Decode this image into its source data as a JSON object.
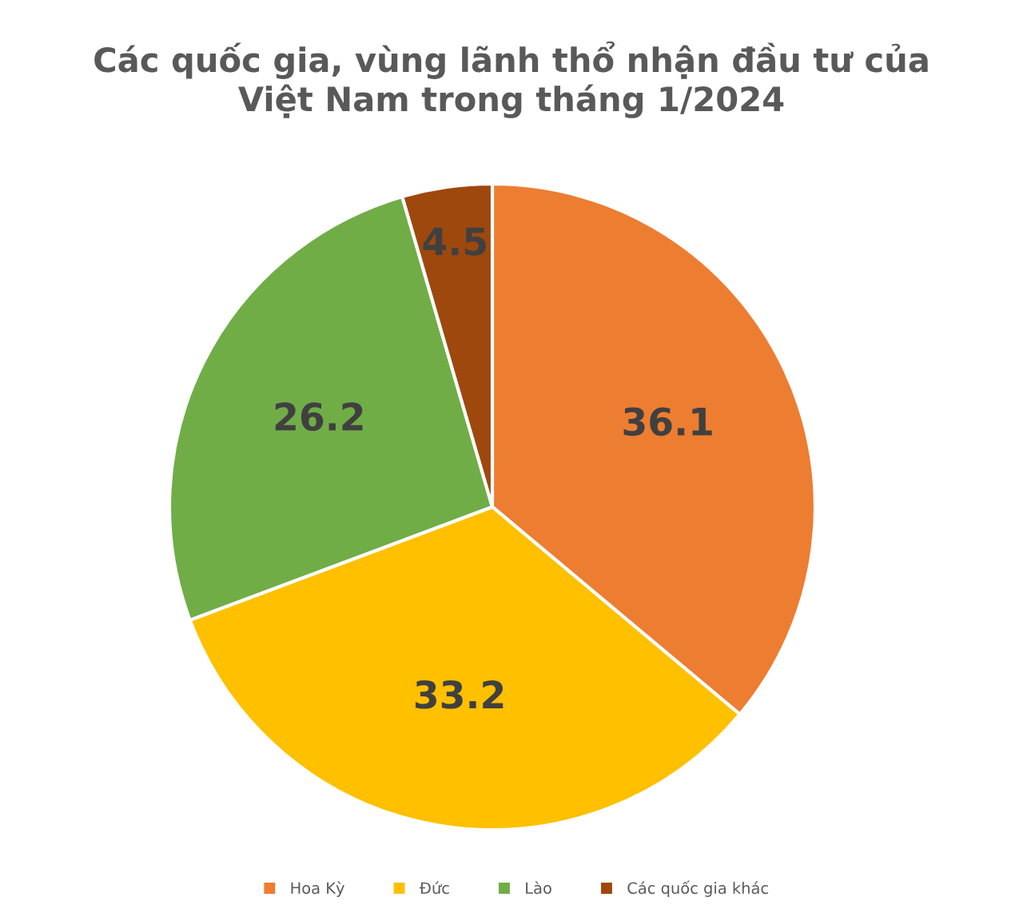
{
  "chart_data": {
    "type": "pie",
    "title": "Các quốc gia, vùng lãnh thổ nhận đầu tư của\nViệt Nam trong tháng 1/2024",
    "categories": [
      "Hoa Kỳ",
      "Đức",
      "Lào",
      "Các quốc gia khác"
    ],
    "values": [
      36.1,
      33.2,
      26.2,
      4.5
    ],
    "colors": [
      "#ed7d31",
      "#ffc000",
      "#70ad47",
      "#9e480e"
    ],
    "data_labels": true,
    "legend": "bottom"
  }
}
